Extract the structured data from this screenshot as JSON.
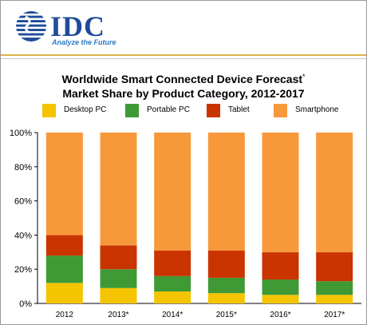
{
  "logo": {
    "brand": "IDC",
    "tagline": "Analyze the Future",
    "colors": {
      "brand_blue": "#1f4b9a",
      "tagline_blue": "#2c7bc4"
    }
  },
  "title": {
    "line1": "Worldwide Smart Connected Device Forecast",
    "line1_mark": "*",
    "line2": "Market Share by Product Category, 2012-2017"
  },
  "legend": [
    {
      "label": "Desktop PC",
      "color": "#f5c400"
    },
    {
      "label": "Portable PC",
      "color": "#3f9a35"
    },
    {
      "label": "Tablet",
      "color": "#c93400"
    },
    {
      "label": "Smartphone",
      "color": "#f7993a"
    }
  ],
  "chart_data": {
    "type": "bar",
    "stacked": true,
    "categories": [
      "2012",
      "2013*",
      "2014*",
      "2015*",
      "2016*",
      "2017*"
    ],
    "series": [
      {
        "name": "Desktop PC",
        "color": "#f5c400",
        "values": [
          12,
          9,
          7,
          6,
          5,
          5
        ]
      },
      {
        "name": "Portable PC",
        "color": "#3f9a35",
        "values": [
          16,
          11,
          9,
          9,
          9,
          8
        ]
      },
      {
        "name": "Tablet",
        "color": "#c93400",
        "values": [
          12,
          14,
          15,
          16,
          16,
          17
        ]
      },
      {
        "name": "Smartphone",
        "color": "#f7993a",
        "values": [
          60,
          66,
          69,
          69,
          70,
          70
        ]
      }
    ],
    "ylim": [
      0,
      100
    ],
    "yticks": [
      "0%",
      "20%",
      "40%",
      "60%",
      "80%",
      "100%"
    ],
    "grid": false,
    "legend_position": "top"
  }
}
